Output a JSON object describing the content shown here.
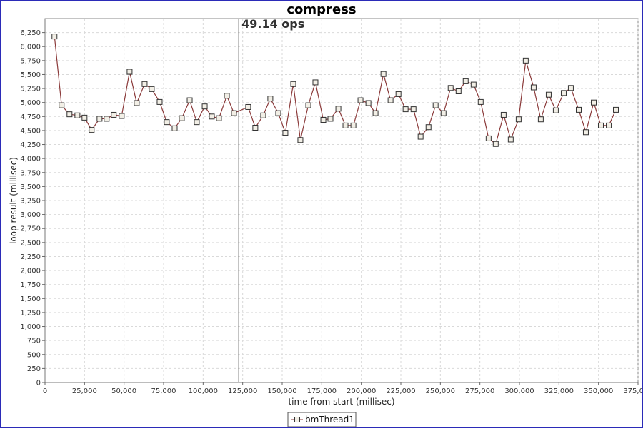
{
  "chart_data": {
    "type": "line",
    "title": "compress",
    "xlabel": "time from start (millisec)",
    "ylabel": "loop result (millisec)",
    "xlim": [
      0,
      375000
    ],
    "ylim": [
      0,
      6500
    ],
    "x_ticks": [
      0,
      25000,
      50000,
      75000,
      100000,
      125000,
      150000,
      175000,
      200000,
      225000,
      250000,
      275000,
      300000,
      325000,
      350000,
      375000
    ],
    "x_tick_labels": [
      "0",
      "25,000",
      "50,000",
      "75,000",
      "100,000",
      "125,000",
      "150,000",
      "175,000",
      "200,000",
      "225,000",
      "250,000",
      "275,000",
      "300,000",
      "325,000",
      "350,000",
      "375,000"
    ],
    "y_ticks": [
      0,
      250,
      500,
      750,
      1000,
      1250,
      1500,
      1750,
      2000,
      2250,
      2500,
      2750,
      3000,
      3250,
      3500,
      3750,
      4000,
      4250,
      4500,
      4750,
      5000,
      5250,
      5500,
      5750,
      6000,
      6250
    ],
    "y_tick_labels": [
      "0",
      "250",
      "500",
      "750",
      "1,000",
      "1,250",
      "1,500",
      "1,750",
      "2,000",
      "2,250",
      "2,500",
      "2,750",
      "3,000",
      "3,250",
      "3,500",
      "3,750",
      "4,000",
      "4,250",
      "4,500",
      "4,750",
      "5,000",
      "5,250",
      "5,500",
      "5,750",
      "6,000",
      "6,250"
    ],
    "grid": true,
    "legend_position": "bottom-center",
    "marker_line": {
      "x": 122500,
      "label": "49.14 ops",
      "color": "#7f7f7f"
    },
    "series": [
      {
        "name": "bmThread1",
        "color": "#8b3a3a",
        "marker": "square",
        "points": [
          [
            6000,
            6180
          ],
          [
            10500,
            4950
          ],
          [
            15500,
            4790
          ],
          [
            20500,
            4770
          ],
          [
            25000,
            4730
          ],
          [
            29500,
            4510
          ],
          [
            34500,
            4710
          ],
          [
            39000,
            4710
          ],
          [
            43500,
            4780
          ],
          [
            48500,
            4760
          ],
          [
            53500,
            5550
          ],
          [
            58000,
            4990
          ],
          [
            63000,
            5330
          ],
          [
            67500,
            5240
          ],
          [
            72500,
            5010
          ],
          [
            77000,
            4650
          ],
          [
            82000,
            4540
          ],
          [
            86500,
            4720
          ],
          [
            91500,
            5040
          ],
          [
            96000,
            4650
          ],
          [
            101000,
            4930
          ],
          [
            105500,
            4750
          ],
          [
            110000,
            4720
          ],
          [
            115000,
            5120
          ],
          [
            119500,
            4810
          ],
          [
            128500,
            4920
          ],
          [
            133000,
            4550
          ],
          [
            138000,
            4770
          ],
          [
            142500,
            5070
          ],
          [
            147500,
            4810
          ],
          [
            152000,
            4460
          ],
          [
            157000,
            5330
          ],
          [
            161500,
            4330
          ],
          [
            166500,
            4950
          ],
          [
            171000,
            5360
          ],
          [
            176000,
            4690
          ],
          [
            180500,
            4710
          ],
          [
            185500,
            4890
          ],
          [
            190000,
            4590
          ],
          [
            195000,
            4590
          ],
          [
            199500,
            5040
          ],
          [
            204500,
            4990
          ],
          [
            209000,
            4810
          ],
          [
            214000,
            5510
          ],
          [
            218500,
            5040
          ],
          [
            223500,
            5150
          ],
          [
            228000,
            4880
          ],
          [
            233000,
            4880
          ],
          [
            237500,
            4390
          ],
          [
            242500,
            4560
          ],
          [
            247000,
            4950
          ],
          [
            252000,
            4810
          ],
          [
            256500,
            5260
          ],
          [
            261500,
            5200
          ],
          [
            266000,
            5380
          ],
          [
            271000,
            5320
          ],
          [
            275500,
            5010
          ],
          [
            280500,
            4360
          ],
          [
            285000,
            4260
          ],
          [
            290000,
            4780
          ],
          [
            294500,
            4340
          ],
          [
            299500,
            4700
          ],
          [
            304000,
            5750
          ],
          [
            309000,
            5270
          ],
          [
            313500,
            4700
          ],
          [
            318500,
            5140
          ],
          [
            323000,
            4860
          ],
          [
            328000,
            5170
          ],
          [
            332500,
            5260
          ],
          [
            337500,
            4870
          ],
          [
            342000,
            4470
          ],
          [
            347000,
            5000
          ],
          [
            351500,
            4590
          ],
          [
            356500,
            4590
          ],
          [
            361000,
            4870
          ]
        ]
      }
    ]
  }
}
